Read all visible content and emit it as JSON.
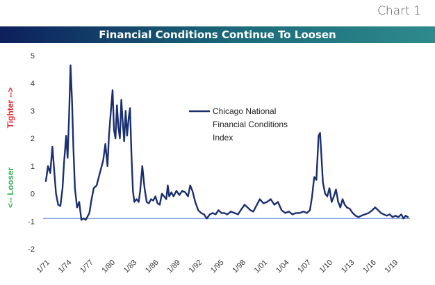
{
  "chart_number": "Chart 1",
  "chart_data": {
    "type": "line",
    "title": "Financial Conditions Continue To Loosen",
    "xlabel": "",
    "ylabel": "",
    "ylim": [
      -2,
      5
    ],
    "xlim": [
      1971,
      2021.2
    ],
    "yticks": [
      "5",
      "4",
      "3",
      "2",
      "1",
      "0",
      "-1",
      "-2"
    ],
    "ytick_values": [
      5,
      4,
      3,
      2,
      1,
      0,
      -1,
      -2
    ],
    "xticks": [
      "1/71",
      "1/74",
      "1/77",
      "1/80",
      "1/83",
      "1/86",
      "1/89",
      "1/92",
      "1/95",
      "1/98",
      "1/01",
      "1/04",
      "1/07",
      "1/10",
      "1/13",
      "1/16",
      "1/19"
    ],
    "xtick_values": [
      1971,
      1974,
      1977,
      1980,
      1983,
      1986,
      1989,
      1992,
      1995,
      1998,
      2001,
      2004,
      2007,
      2010,
      2013,
      2016,
      2019
    ],
    "annotations": {
      "tighter": "Tighter -->",
      "looser": "<-- Looser"
    },
    "colors": {
      "series": "#1a2f6e",
      "reference_line": "#6f8fd8",
      "tighter": "#e8282b",
      "looser": "#2fae4e"
    },
    "reference_line_value": -0.9,
    "legend_position": "top-right",
    "grid": false,
    "series": [
      {
        "name": "Chicago National Financial Conditions Index",
        "x": [
          1971.0,
          1971.3,
          1971.6,
          1971.9,
          1972.1,
          1972.4,
          1972.7,
          1973.0,
          1973.3,
          1973.5,
          1973.8,
          1974.0,
          1974.2,
          1974.4,
          1974.6,
          1974.8,
          1975.0,
          1975.3,
          1975.6,
          1975.9,
          1976.2,
          1976.5,
          1976.7,
          1977.0,
          1977.3,
          1977.6,
          1978.0,
          1978.3,
          1978.6,
          1978.9,
          1979.2,
          1979.5,
          1979.7,
          1980.0,
          1980.2,
          1980.4,
          1980.6,
          1980.8,
          1981.0,
          1981.2,
          1981.4,
          1981.6,
          1981.8,
          1982.0,
          1982.2,
          1982.4,
          1982.6,
          1982.8,
          1983.0,
          1983.2,
          1983.5,
          1983.8,
          1984.0,
          1984.3,
          1984.6,
          1984.9,
          1985.2,
          1985.5,
          1985.8,
          1986.1,
          1986.4,
          1986.7,
          1987.0,
          1987.3,
          1987.6,
          1987.8,
          1988.0,
          1988.3,
          1988.6,
          1989.0,
          1989.4,
          1989.8,
          1990.2,
          1990.6,
          1990.9,
          1991.2,
          1991.6,
          1992.0,
          1992.4,
          1992.8,
          1993.2,
          1993.6,
          1994.0,
          1994.4,
          1994.8,
          1995.2,
          1995.6,
          1996.0,
          1996.5,
          1997.0,
          1997.5,
          1998.0,
          1998.4,
          1998.8,
          1999.2,
          1999.6,
          2000.0,
          2000.5,
          2001.0,
          2001.5,
          2002.0,
          2002.5,
          2003.0,
          2003.5,
          2004.0,
          2004.5,
          2005.0,
          2005.5,
          2006.0,
          2006.5,
          2007.0,
          2007.4,
          2007.7,
          2008.0,
          2008.3,
          2008.6,
          2008.8,
          2009.0,
          2009.2,
          2009.5,
          2009.8,
          2010.1,
          2010.4,
          2010.7,
          2011.0,
          2011.3,
          2011.6,
          2011.9,
          2012.2,
          2012.5,
          2012.9,
          2013.3,
          2013.7,
          2014.1,
          2014.5,
          2015.0,
          2015.5,
          2016.0,
          2016.4,
          2016.8,
          2017.2,
          2017.6,
          2018.0,
          2018.4,
          2018.8,
          2019.2,
          2019.6,
          2020.0,
          2020.3,
          2020.6,
          2020.9
        ],
        "values": [
          0.45,
          1.0,
          0.75,
          1.7,
          1.0,
          0.0,
          -0.4,
          -0.45,
          0.2,
          1.1,
          2.1,
          1.3,
          2.8,
          4.65,
          3.4,
          1.6,
          0.2,
          -0.5,
          -0.3,
          -0.95,
          -0.9,
          -0.95,
          -0.85,
          -0.7,
          -0.2,
          0.2,
          0.3,
          0.6,
          0.9,
          1.2,
          1.8,
          1.0,
          2.1,
          3.1,
          3.75,
          2.3,
          2.0,
          3.2,
          2.4,
          2.0,
          3.4,
          2.6,
          1.9,
          3.0,
          2.1,
          2.7,
          3.1,
          1.4,
          0.1,
          -0.3,
          -0.2,
          -0.3,
          0.1,
          1.0,
          0.2,
          -0.3,
          -0.35,
          -0.2,
          -0.25,
          -0.1,
          -0.35,
          -0.4,
          0.0,
          -0.1,
          -0.2,
          0.3,
          -0.1,
          0.05,
          -0.1,
          0.1,
          -0.05,
          0.1,
          0.05,
          -0.1,
          0.3,
          0.1,
          -0.3,
          -0.6,
          -0.7,
          -0.75,
          -0.9,
          -0.75,
          -0.7,
          -0.75,
          -0.6,
          -0.7,
          -0.7,
          -0.75,
          -0.65,
          -0.7,
          -0.75,
          -0.55,
          -0.4,
          -0.5,
          -0.6,
          -0.65,
          -0.45,
          -0.2,
          -0.35,
          -0.3,
          -0.2,
          -0.4,
          -0.3,
          -0.6,
          -0.7,
          -0.65,
          -0.75,
          -0.7,
          -0.7,
          -0.65,
          -0.7,
          -0.6,
          -0.1,
          0.6,
          0.5,
          2.1,
          2.2,
          1.3,
          0.4,
          0.0,
          -0.1,
          0.2,
          -0.3,
          -0.1,
          0.15,
          -0.3,
          -0.5,
          -0.2,
          -0.4,
          -0.5,
          -0.55,
          -0.7,
          -0.8,
          -0.85,
          -0.8,
          -0.75,
          -0.7,
          -0.6,
          -0.5,
          -0.6,
          -0.7,
          -0.75,
          -0.8,
          -0.75,
          -0.85,
          -0.8,
          -0.85,
          -0.75,
          -0.9,
          -0.8,
          -0.85
        ]
      }
    ]
  }
}
